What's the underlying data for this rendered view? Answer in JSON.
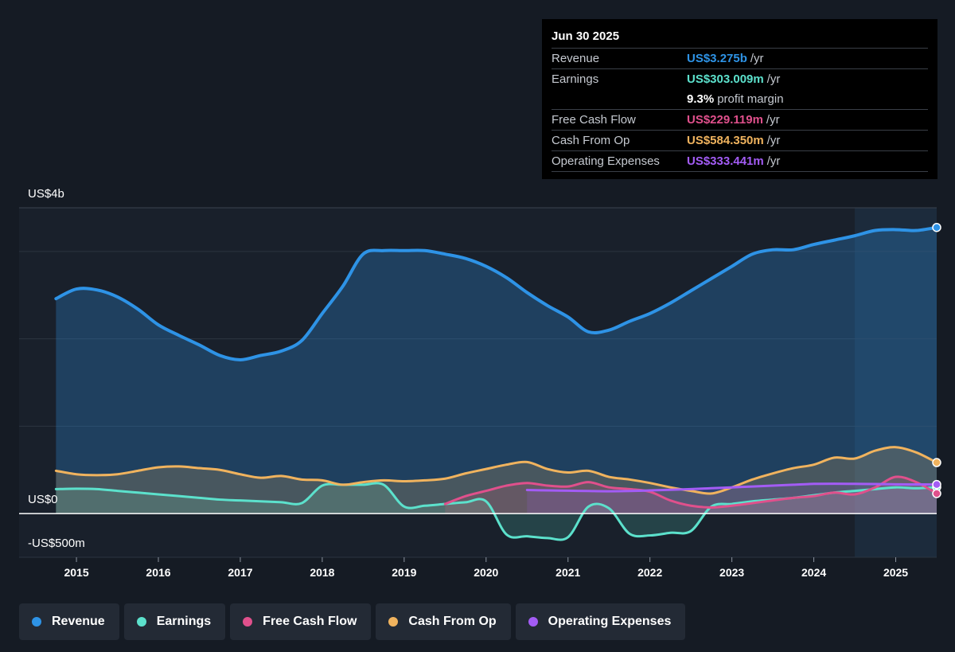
{
  "tooltip": {
    "date": "Jun 30 2025",
    "rows": [
      {
        "label": "Revenue",
        "value": "US$3.275b",
        "unit": "/yr",
        "color": "#2e93e6"
      },
      {
        "label": "Earnings",
        "value": "US$303.009m",
        "unit": "/yr",
        "color": "#5ce1cc"
      },
      {
        "label": "",
        "value": "9.3%",
        "unit": "profit margin",
        "color": "#ffffff"
      },
      {
        "label": "Free Cash Flow",
        "value": "US$229.119m",
        "unit": "/yr",
        "color": "#e0508c"
      },
      {
        "label": "Cash From Op",
        "value": "US$584.350m",
        "unit": "/yr",
        "color": "#f0b35e"
      },
      {
        "label": "Operating Expenses",
        "value": "US$333.441m",
        "unit": "/yr",
        "color": "#a35cf5"
      }
    ]
  },
  "legend": [
    {
      "label": "Revenue",
      "color": "#2e93e6"
    },
    {
      "label": "Earnings",
      "color": "#5ce1cc"
    },
    {
      "label": "Free Cash Flow",
      "color": "#e0508c"
    },
    {
      "label": "Cash From Op",
      "color": "#f0b35e"
    },
    {
      "label": "Operating Expenses",
      "color": "#a35cf5"
    }
  ],
  "chart_data": {
    "type": "area",
    "y_labels": [
      "US$4b",
      "US$0",
      "-US$500m"
    ],
    "x_tick_labels": [
      "2015",
      "2016",
      "2017",
      "2018",
      "2019",
      "2020",
      "2021",
      "2022",
      "2023",
      "2024",
      "2025"
    ],
    "ylim": [
      -500,
      3500
    ],
    "xlim": [
      2014.3,
      2025.5
    ],
    "grid": true,
    "y_unit": "US$ millions",
    "series": [
      {
        "name": "Revenue",
        "color": "#2e93e6",
        "x": [
          2014.75,
          2015.0,
          2015.25,
          2015.5,
          2015.75,
          2016.0,
          2016.25,
          2016.5,
          2016.75,
          2017.0,
          2017.25,
          2017.5,
          2017.75,
          2018.0,
          2018.25,
          2018.5,
          2018.75,
          2019.0,
          2019.25,
          2019.5,
          2019.75,
          2020.0,
          2020.25,
          2020.5,
          2020.75,
          2021.0,
          2021.25,
          2021.5,
          2021.75,
          2022.0,
          2022.25,
          2022.5,
          2022.75,
          2023.0,
          2023.25,
          2023.5,
          2023.75,
          2024.0,
          2024.25,
          2024.5,
          2024.75,
          2025.0,
          2025.25,
          2025.5
        ],
        "values": [
          2460,
          2570,
          2560,
          2480,
          2340,
          2160,
          2040,
          1930,
          1810,
          1760,
          1810,
          1860,
          1980,
          2290,
          2600,
          2970,
          3010,
          3010,
          3010,
          2970,
          2920,
          2830,
          2700,
          2530,
          2380,
          2250,
          2080,
          2100,
          2200,
          2290,
          2410,
          2550,
          2690,
          2830,
          2970,
          3020,
          3020,
          3080,
          3130,
          3180,
          3240,
          3250,
          3240,
          3275
        ]
      },
      {
        "name": "Earnings",
        "color": "#5ce1cc",
        "x": [
          2014.75,
          2015.0,
          2015.25,
          2015.5,
          2015.75,
          2016.0,
          2016.25,
          2016.5,
          2016.75,
          2017.0,
          2017.25,
          2017.5,
          2017.75,
          2018.0,
          2018.25,
          2018.5,
          2018.75,
          2019.0,
          2019.25,
          2019.5,
          2019.75,
          2020.0,
          2020.25,
          2020.5,
          2020.75,
          2021.0,
          2021.25,
          2021.5,
          2021.75,
          2022.0,
          2022.25,
          2022.5,
          2022.75,
          2023.0,
          2023.25,
          2023.5,
          2023.75,
          2024.0,
          2024.25,
          2024.5,
          2024.75,
          2025.0,
          2025.25,
          2025.5
        ],
        "values": [
          280,
          285,
          280,
          260,
          240,
          220,
          200,
          180,
          160,
          150,
          140,
          130,
          120,
          320,
          330,
          330,
          330,
          80,
          90,
          110,
          130,
          140,
          -240,
          -260,
          -280,
          -270,
          80,
          60,
          -230,
          -250,
          -220,
          -200,
          80,
          110,
          140,
          160,
          180,
          210,
          240,
          260,
          280,
          300,
          290,
          303
        ]
      },
      {
        "name": "Free Cash Flow",
        "color": "#e0508c",
        "x": [
          2019.5,
          2019.75,
          2020.0,
          2020.25,
          2020.5,
          2020.75,
          2021.0,
          2021.25,
          2021.5,
          2021.75,
          2022.0,
          2022.25,
          2022.5,
          2022.75,
          2023.0,
          2023.25,
          2023.5,
          2023.75,
          2024.0,
          2024.25,
          2024.5,
          2024.75,
          2025.0,
          2025.25,
          2025.5
        ],
        "values": [
          110,
          200,
          260,
          320,
          350,
          320,
          310,
          360,
          300,
          280,
          250,
          150,
          90,
          70,
          90,
          120,
          150,
          180,
          200,
          240,
          220,
          300,
          420,
          360,
          229
        ]
      },
      {
        "name": "Cash From Op",
        "color": "#f0b35e",
        "x": [
          2014.75,
          2015.0,
          2015.25,
          2015.5,
          2015.75,
          2016.0,
          2016.25,
          2016.5,
          2016.75,
          2017.0,
          2017.25,
          2017.5,
          2017.75,
          2018.0,
          2018.25,
          2018.5,
          2018.75,
          2019.0,
          2019.25,
          2019.5,
          2019.75,
          2020.0,
          2020.25,
          2020.5,
          2020.75,
          2021.0,
          2021.25,
          2021.5,
          2021.75,
          2022.0,
          2022.25,
          2022.5,
          2022.75,
          2023.0,
          2023.25,
          2023.5,
          2023.75,
          2024.0,
          2024.25,
          2024.5,
          2024.75,
          2025.0,
          2025.25,
          2025.5
        ],
        "values": [
          490,
          450,
          440,
          450,
          490,
          530,
          540,
          520,
          500,
          450,
          410,
          430,
          390,
          380,
          330,
          360,
          380,
          370,
          380,
          400,
          460,
          510,
          560,
          590,
          510,
          470,
          490,
          420,
          390,
          350,
          300,
          260,
          230,
          300,
          390,
          460,
          520,
          560,
          640,
          630,
          720,
          760,
          700,
          584
        ]
      },
      {
        "name": "Operating Expenses",
        "color": "#a35cf5",
        "x": [
          2020.5,
          2020.75,
          2021.0,
          2021.25,
          2021.5,
          2021.75,
          2022.0,
          2022.25,
          2022.5,
          2022.75,
          2023.0,
          2023.25,
          2023.5,
          2023.75,
          2024.0,
          2024.25,
          2024.5,
          2024.75,
          2025.0,
          2025.25,
          2025.5
        ],
        "values": [
          270,
          265,
          262,
          258,
          255,
          258,
          265,
          272,
          280,
          290,
          300,
          310,
          320,
          330,
          340,
          342,
          340,
          338,
          335,
          334,
          333
        ]
      }
    ]
  }
}
